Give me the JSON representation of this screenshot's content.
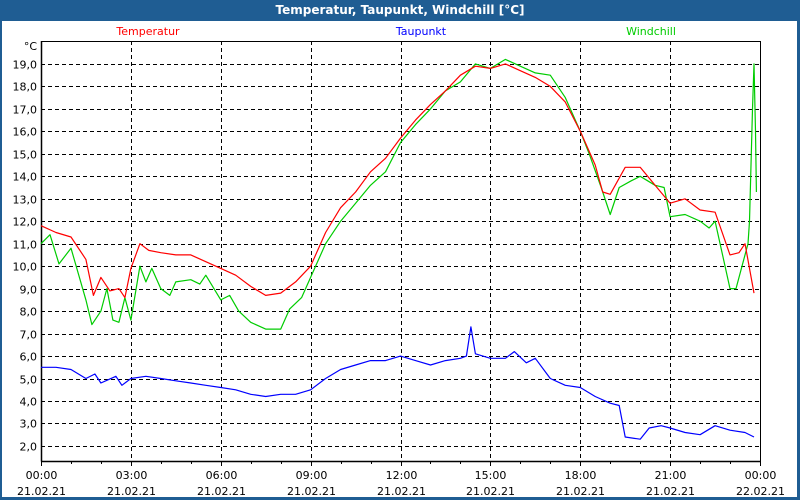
{
  "window": {
    "title": "Temperatur, Taupunkt, Windchill [°C]"
  },
  "chart_data": {
    "type": "line",
    "title": "Temperatur, Taupunkt, Windchill [°C]",
    "ylabel": "°C",
    "xlabel": "",
    "ylim": [
      1.33,
      20.02
    ],
    "xlim": [
      0,
      24
    ],
    "grid": true,
    "legend_placement": "top",
    "y_ticks": [
      2,
      3,
      4,
      5,
      6,
      7,
      8,
      9,
      10,
      11,
      12,
      13,
      14,
      15,
      16,
      17,
      18,
      19
    ],
    "y_tick_labels": [
      "2,0",
      "3,0",
      "4,0",
      "5,0",
      "6,0",
      "7,0",
      "8,0",
      "9,0",
      "10,0",
      "11,0",
      "12,0",
      "13,0",
      "14,0",
      "15,0",
      "16,0",
      "17,0",
      "18,0",
      "19,0"
    ],
    "x_ticks": [
      0,
      3,
      6,
      9,
      12,
      15,
      18,
      21,
      24
    ],
    "x_tick_labels": [
      [
        "00:00",
        "21.02.21"
      ],
      [
        "03:00",
        "21.02.21"
      ],
      [
        "06:00",
        "21.02.21"
      ],
      [
        "09:00",
        "21.02.21"
      ],
      [
        "12:00",
        "21.02.21"
      ],
      [
        "15:00",
        "21.02.21"
      ],
      [
        "18:00",
        "21.02.21"
      ],
      [
        "21:00",
        "21.02.21"
      ],
      [
        "00:00",
        "22.02.21"
      ]
    ],
    "series": [
      {
        "name": "Temperatur",
        "color": "#ff0000",
        "x": [
          0,
          0.5,
          1,
          1.5,
          1.75,
          2,
          2.3,
          2.6,
          2.8,
          3,
          3.3,
          3.6,
          4,
          4.5,
          5,
          5.5,
          6,
          6.5,
          7,
          7.5,
          8,
          8.5,
          9,
          9.5,
          10,
          10.5,
          11,
          11.5,
          12,
          12.5,
          13,
          13.5,
          14,
          14.5,
          15,
          15.5,
          16,
          16.5,
          17,
          17.5,
          18,
          18.5,
          18.75,
          19,
          19.5,
          20,
          20.5,
          21,
          21.5,
          22,
          22.5,
          23,
          23.3,
          23.5,
          23.8
        ],
        "y": [
          11.8,
          11.5,
          11.3,
          10.3,
          8.7,
          9.5,
          8.9,
          9.0,
          8.6,
          9.9,
          11.0,
          10.7,
          10.6,
          10.5,
          10.5,
          10.2,
          9.9,
          9.6,
          9.1,
          8.7,
          8.8,
          9.3,
          10.0,
          11.5,
          12.6,
          13.3,
          14.2,
          14.8,
          15.7,
          16.5,
          17.2,
          17.8,
          18.5,
          18.9,
          18.8,
          19.0,
          18.7,
          18.4,
          18.0,
          17.3,
          16.0,
          14.5,
          13.3,
          13.2,
          14.4,
          14.4,
          13.6,
          12.8,
          13.0,
          12.5,
          12.4,
          10.5,
          10.6,
          11.0,
          8.8
        ]
      },
      {
        "name": "Taupunkt",
        "color": "#0000ff",
        "x": [
          0,
          0.5,
          1,
          1.5,
          1.8,
          2,
          2.5,
          2.7,
          3,
          3.5,
          4,
          4.5,
          5,
          5.5,
          6,
          6.5,
          7,
          7.5,
          8,
          8.5,
          9,
          9.5,
          10,
          10.5,
          11,
          11.5,
          12,
          12.5,
          13,
          13.5,
          14,
          14.2,
          14.35,
          14.5,
          15,
          15.5,
          15.8,
          16.2,
          16.5,
          17,
          17.5,
          18,
          18.5,
          19,
          19.3,
          19.5,
          20,
          20.3,
          20.7,
          21,
          21.5,
          22,
          22.5,
          23,
          23.5,
          23.8
        ],
        "y": [
          5.5,
          5.5,
          5.4,
          5.0,
          5.2,
          4.8,
          5.1,
          4.7,
          5.0,
          5.1,
          5.0,
          4.9,
          4.8,
          4.7,
          4.6,
          4.5,
          4.3,
          4.2,
          4.3,
          4.3,
          4.5,
          5.0,
          5.4,
          5.6,
          5.8,
          5.8,
          6.0,
          5.8,
          5.6,
          5.8,
          5.9,
          6.0,
          7.3,
          6.1,
          5.9,
          5.9,
          6.2,
          5.7,
          5.9,
          5.0,
          4.7,
          4.6,
          4.2,
          3.9,
          3.8,
          2.4,
          2.3,
          2.8,
          2.9,
          2.8,
          2.6,
          2.5,
          2.9,
          2.7,
          2.6,
          2.4
        ]
      },
      {
        "name": "Windchill",
        "color": "#00cc00",
        "x": [
          0,
          0.3,
          0.6,
          1,
          1.5,
          1.7,
          2,
          2.2,
          2.4,
          2.6,
          2.8,
          3,
          3.3,
          3.5,
          3.7,
          4,
          4.3,
          4.5,
          5,
          5.3,
          5.5,
          6,
          6.3,
          6.6,
          7,
          7.5,
          8,
          8.3,
          8.7,
          9,
          9.5,
          10,
          10.5,
          11,
          11.5,
          12,
          12.5,
          13,
          13.5,
          14,
          14.5,
          15,
          15.5,
          16,
          16.5,
          17,
          17.5,
          18,
          18.3,
          18.7,
          19,
          19.3,
          19.7,
          20,
          20.5,
          20.8,
          21,
          21.5,
          22,
          22.3,
          22.5,
          23,
          23.2,
          23.4,
          23.6,
          23.65,
          23.75,
          23.8,
          23.85,
          23.88
        ],
        "y": [
          11.0,
          11.4,
          10.1,
          10.8,
          8.5,
          7.4,
          8.0,
          9.0,
          7.6,
          7.5,
          8.6,
          7.6,
          10.0,
          9.3,
          9.9,
          9.0,
          8.7,
          9.3,
          9.4,
          9.2,
          9.6,
          8.5,
          8.7,
          8.0,
          7.5,
          7.2,
          7.2,
          8.1,
          8.6,
          9.5,
          11.0,
          12.0,
          12.8,
          13.6,
          14.2,
          15.5,
          16.3,
          17.0,
          17.8,
          18.2,
          19.0,
          18.8,
          19.2,
          18.9,
          18.6,
          18.5,
          17.5,
          16.0,
          15.0,
          13.5,
          12.3,
          13.5,
          13.8,
          14.0,
          13.6,
          13.5,
          12.2,
          12.3,
          12.0,
          11.7,
          12.0,
          9.0,
          9.0,
          10.0,
          11.0,
          12.0,
          17.0,
          19.0,
          16.0,
          13.3
        ]
      }
    ]
  }
}
